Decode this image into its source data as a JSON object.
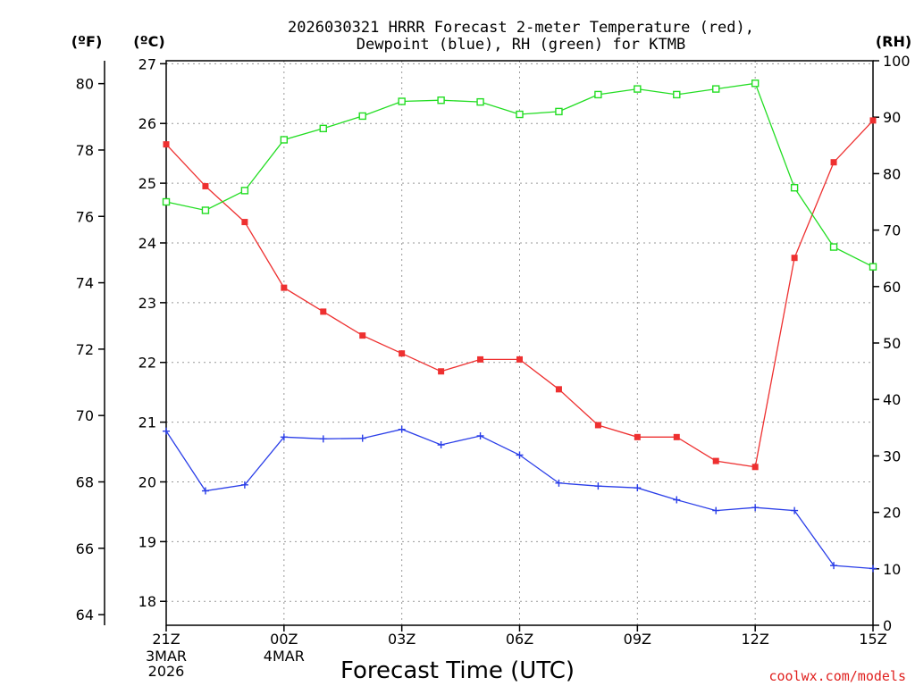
{
  "chart_data": {
    "type": "line",
    "title": [
      "2026030321 HRRR Forecast 2-meter Temperature (red),",
      "Dewpoint (blue), RH (green) for KTMB"
    ],
    "xlabel": "Forecast Time (UTC)",
    "credit": "coolwx.com/models",
    "units": {
      "fahrenheit": "(ºF)",
      "celsius": "(ºC)",
      "rh": "(RH)"
    },
    "x_hours": [
      0,
      1,
      2,
      3,
      4,
      5,
      6,
      7,
      8,
      9,
      10,
      11,
      12,
      13,
      14,
      15,
      16,
      17,
      18
    ],
    "x_ticks": [
      {
        "hour": 0,
        "label": "21Z",
        "sub": [
          "3MAR",
          "2026"
        ]
      },
      {
        "hour": 3,
        "label": "00Z",
        "sub": [
          "4MAR"
        ]
      },
      {
        "hour": 6,
        "label": "03Z",
        "sub": []
      },
      {
        "hour": 9,
        "label": "06Z",
        "sub": []
      },
      {
        "hour": 12,
        "label": "09Z",
        "sub": []
      },
      {
        "hour": 15,
        "label": "12Z",
        "sub": []
      },
      {
        "hour": 18,
        "label": "15Z",
        "sub": []
      }
    ],
    "celsius_axis": {
      "min": 17.6,
      "max": 27.05,
      "ticks": [
        18,
        19,
        20,
        21,
        22,
        23,
        24,
        25,
        26,
        27
      ]
    },
    "fahrenheit_ticks": [
      64,
      66,
      68,
      70,
      72,
      74,
      76,
      78,
      80
    ],
    "rh_axis": {
      "min": 0,
      "max": 100,
      "ticks": [
        0,
        10,
        20,
        30,
        40,
        50,
        60,
        70,
        80,
        90,
        100
      ]
    },
    "grid": true,
    "series": [
      {
        "name": "Temperature",
        "axis": "celsius",
        "color": "#ee3030",
        "marker": "filled-square",
        "values": [
          25.65,
          24.95,
          24.35,
          23.25,
          22.85,
          22.45,
          22.15,
          21.85,
          22.05,
          22.05,
          21.55,
          20.95,
          20.75,
          20.75,
          20.35,
          20.25,
          23.75,
          25.35,
          26.05
        ]
      },
      {
        "name": "Dewpoint",
        "axis": "celsius",
        "color": "#2a3ee8",
        "marker": "plus",
        "values": [
          20.85,
          19.85,
          19.95,
          20.75,
          20.72,
          20.73,
          20.88,
          20.62,
          20.77,
          20.45,
          19.98,
          19.93,
          19.9,
          19.7,
          19.52,
          19.57,
          19.52,
          18.6,
          18.55
        ]
      },
      {
        "name": "RH",
        "axis": "rh",
        "color": "#22dd22",
        "marker": "open-square",
        "values": [
          75,
          73.5,
          77,
          86,
          88,
          90.2,
          92.8,
          93,
          92.7,
          90.5,
          91,
          94,
          95,
          94,
          95,
          96,
          77.5,
          67,
          63.5
        ]
      }
    ]
  }
}
